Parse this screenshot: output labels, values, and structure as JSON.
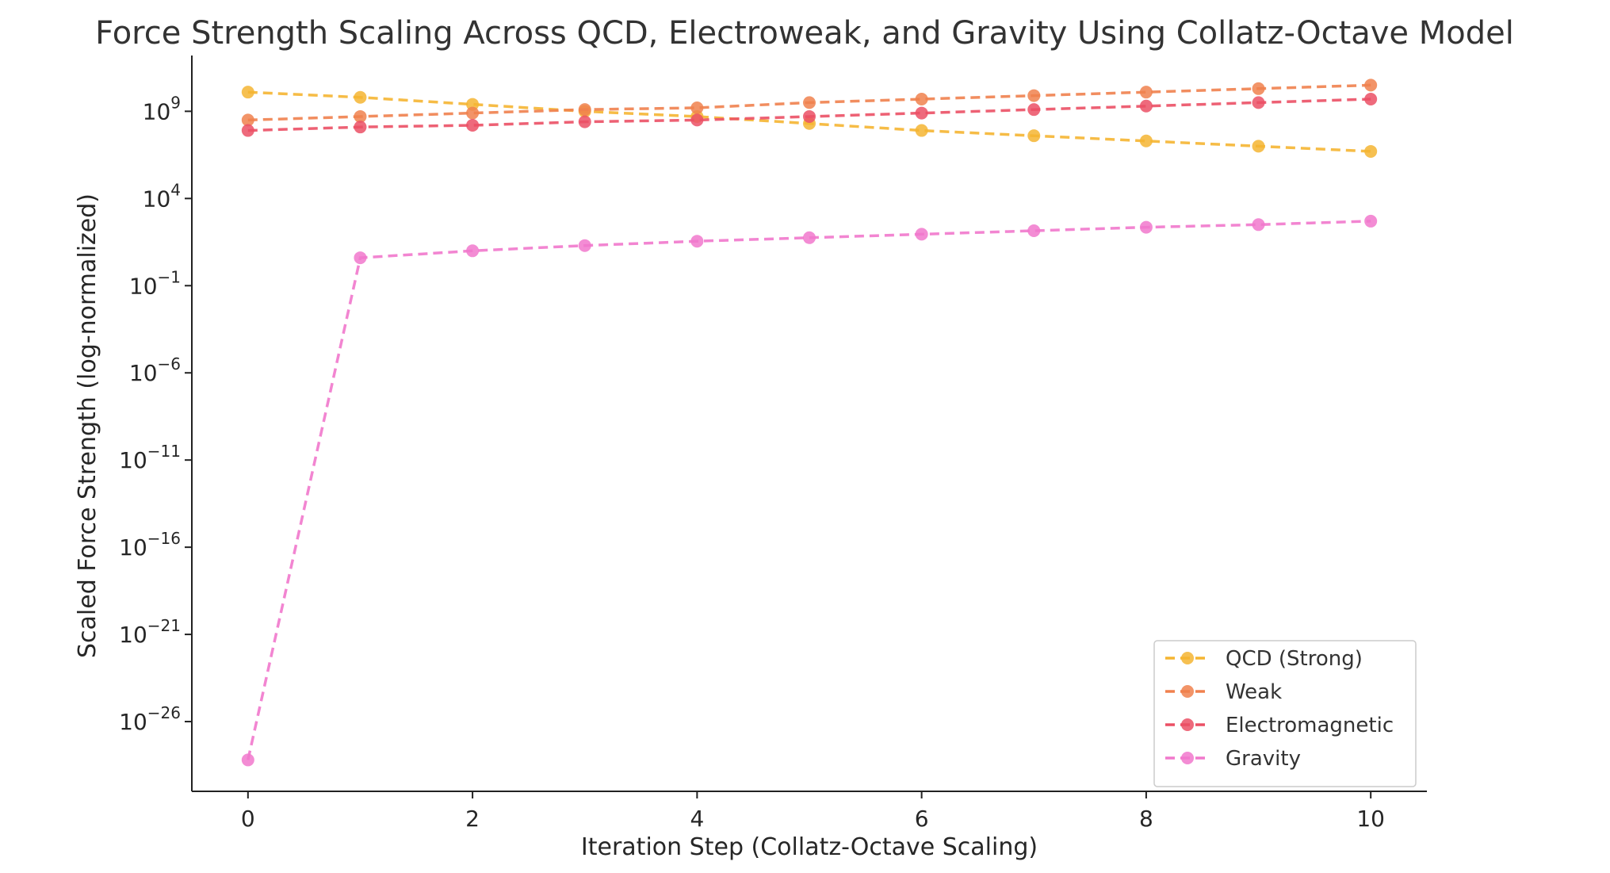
{
  "chart_data": {
    "type": "line",
    "title": "Force Strength Scaling Across QCD, Electroweak, and Gravity Using Collatz-Octave Model",
    "xlabel": "Iteration Step (Collatz-Octave Scaling)",
    "ylabel": "Scaled Force Strength (log-normalized)",
    "yscale": "log",
    "xlim": [
      -0.5,
      10.5
    ],
    "ylim_log10": [
      -30,
      12.2
    ],
    "x_ticks": [
      0,
      2,
      4,
      6,
      8,
      10
    ],
    "y_ticks_log10": [
      9,
      4,
      -1,
      -6,
      -11,
      -16,
      -21,
      -26
    ],
    "grid": false,
    "legend_position": "lower-right",
    "marker": "circle",
    "line_style": "dashed",
    "x": [
      0,
      1,
      2,
      3,
      4,
      5,
      6,
      7,
      8,
      9,
      10
    ],
    "series": [
      {
        "name": "QCD (Strong)",
        "color": "#F5B532",
        "log10_values": [
          10.1,
          9.8,
          9.4,
          9.0,
          8.7,
          8.3,
          7.9,
          7.6,
          7.3,
          7.0,
          6.7
        ]
      },
      {
        "name": "Weak",
        "color": "#F0814E",
        "log10_values": [
          8.5,
          8.7,
          8.9,
          9.1,
          9.2,
          9.5,
          9.7,
          9.9,
          10.1,
          10.3,
          10.5
        ]
      },
      {
        "name": "Electromagnetic",
        "color": "#EB5065",
        "log10_values": [
          7.9,
          8.1,
          8.2,
          8.4,
          8.5,
          8.7,
          8.9,
          9.1,
          9.3,
          9.5,
          9.7
        ]
      },
      {
        "name": "Gravity",
        "color": "#F178CC",
        "log10_values": [
          -28.2,
          0.6,
          1.0,
          1.3,
          1.55,
          1.75,
          1.95,
          2.15,
          2.35,
          2.5,
          2.7
        ]
      }
    ]
  }
}
